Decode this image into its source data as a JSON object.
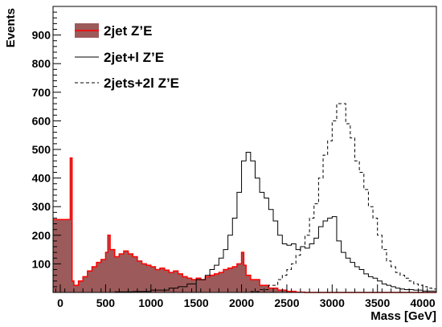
{
  "chart_data": {
    "type": "histogram",
    "xlabel": "Mass [GeV]",
    "ylabel": "Events",
    "xlim": [
      -80,
      4150
    ],
    "ylim": [
      0,
      1000
    ],
    "bin_width": 25,
    "x_ticks": [
      0,
      500,
      1000,
      1500,
      2000,
      2500,
      3000,
      3500,
      4000
    ],
    "y_ticks": [
      100,
      200,
      300,
      400,
      500,
      600,
      700,
      800,
      900
    ],
    "legend_position": "top-left",
    "series": [
      {
        "name": "2jet  Z’E",
        "style": "filled",
        "fill": "#9c5a5a",
        "stroke": "#ff0000",
        "points": [
          [
            -80,
            255
          ],
          [
            100,
            255
          ],
          [
            110,
            470
          ],
          [
            130,
            40
          ],
          [
            150,
            25
          ],
          [
            200,
            40
          ],
          [
            250,
            55
          ],
          [
            300,
            75
          ],
          [
            350,
            90
          ],
          [
            400,
            105
          ],
          [
            450,
            115
          ],
          [
            500,
            140
          ],
          [
            525,
            200
          ],
          [
            550,
            150
          ],
          [
            600,
            125
          ],
          [
            650,
            135
          ],
          [
            700,
            145
          ],
          [
            750,
            135
          ],
          [
            800,
            125
          ],
          [
            850,
            110
          ],
          [
            900,
            100
          ],
          [
            950,
            95
          ],
          [
            1000,
            90
          ],
          [
            1050,
            80
          ],
          [
            1100,
            85
          ],
          [
            1150,
            78
          ],
          [
            1200,
            70
          ],
          [
            1250,
            75
          ],
          [
            1300,
            65
          ],
          [
            1350,
            55
          ],
          [
            1400,
            50
          ],
          [
            1450,
            45
          ],
          [
            1500,
            50
          ],
          [
            1550,
            45
          ],
          [
            1600,
            55
          ],
          [
            1650,
            60
          ],
          [
            1700,
            65
          ],
          [
            1750,
            70
          ],
          [
            1800,
            80
          ],
          [
            1850,
            85
          ],
          [
            1900,
            90
          ],
          [
            1950,
            100
          ],
          [
            2000,
            140
          ],
          [
            2025,
            95
          ],
          [
            2050,
            60
          ],
          [
            2100,
            45
          ],
          [
            2200,
            25
          ],
          [
            2300,
            15
          ],
          [
            2400,
            8
          ],
          [
            2500,
            4
          ],
          [
            2600,
            1
          ],
          [
            2700,
            0
          ],
          [
            4150,
            0
          ]
        ]
      },
      {
        "name": "2jet+l Z’E",
        "style": "solid",
        "points": [
          [
            600,
            2
          ],
          [
            800,
            3
          ],
          [
            1000,
            8
          ],
          [
            1200,
            15
          ],
          [
            1300,
            20
          ],
          [
            1400,
            30
          ],
          [
            1500,
            45
          ],
          [
            1600,
            60
          ],
          [
            1650,
            80
          ],
          [
            1700,
            95
          ],
          [
            1750,
            120
          ],
          [
            1800,
            150
          ],
          [
            1850,
            200
          ],
          [
            1900,
            260
          ],
          [
            1950,
            350
          ],
          [
            2000,
            460
          ],
          [
            2050,
            490
          ],
          [
            2100,
            460
          ],
          [
            2150,
            400
          ],
          [
            2200,
            350
          ],
          [
            2250,
            330
          ],
          [
            2300,
            290
          ],
          [
            2350,
            250
          ],
          [
            2400,
            200
          ],
          [
            2450,
            170
          ],
          [
            2500,
            165
          ],
          [
            2550,
            170
          ],
          [
            2600,
            150
          ],
          [
            2650,
            160
          ],
          [
            2700,
            155
          ],
          [
            2750,
            170
          ],
          [
            2800,
            190
          ],
          [
            2850,
            230
          ],
          [
            2900,
            250
          ],
          [
            2950,
            260
          ],
          [
            3000,
            265
          ],
          [
            3050,
            180
          ],
          [
            3100,
            140
          ],
          [
            3150,
            120
          ],
          [
            3200,
            105
          ],
          [
            3250,
            90
          ],
          [
            3300,
            80
          ],
          [
            3350,
            65
          ],
          [
            3400,
            55
          ],
          [
            3450,
            50
          ],
          [
            3500,
            40
          ],
          [
            3550,
            30
          ],
          [
            3600,
            25
          ],
          [
            3650,
            20
          ],
          [
            3700,
            15
          ],
          [
            3750,
            12
          ],
          [
            3800,
            10
          ],
          [
            3900,
            8
          ],
          [
            4000,
            5
          ],
          [
            4150,
            5
          ]
        ]
      },
      {
        "name": "2jets+2l Z’E",
        "style": "dashed",
        "points": [
          [
            2100,
            3
          ],
          [
            2200,
            10
          ],
          [
            2300,
            25
          ],
          [
            2400,
            45
          ],
          [
            2450,
            60
          ],
          [
            2500,
            80
          ],
          [
            2550,
            100
          ],
          [
            2600,
            130
          ],
          [
            2650,
            160
          ],
          [
            2700,
            200
          ],
          [
            2750,
            260
          ],
          [
            2800,
            310
          ],
          [
            2850,
            400
          ],
          [
            2900,
            480
          ],
          [
            2950,
            530
          ],
          [
            3000,
            600
          ],
          [
            3050,
            660
          ],
          [
            3100,
            660
          ],
          [
            3150,
            590
          ],
          [
            3200,
            540
          ],
          [
            3250,
            460
          ],
          [
            3300,
            420
          ],
          [
            3350,
            360
          ],
          [
            3400,
            300
          ],
          [
            3450,
            260
          ],
          [
            3500,
            200
          ],
          [
            3550,
            150
          ],
          [
            3600,
            110
          ],
          [
            3650,
            90
          ],
          [
            3700,
            70
          ],
          [
            3750,
            60
          ],
          [
            3800,
            50
          ],
          [
            3850,
            40
          ],
          [
            3900,
            30
          ],
          [
            3950,
            25
          ],
          [
            4000,
            20
          ],
          [
            4050,
            15
          ],
          [
            4100,
            12
          ],
          [
            4150,
            10
          ]
        ]
      }
    ]
  }
}
